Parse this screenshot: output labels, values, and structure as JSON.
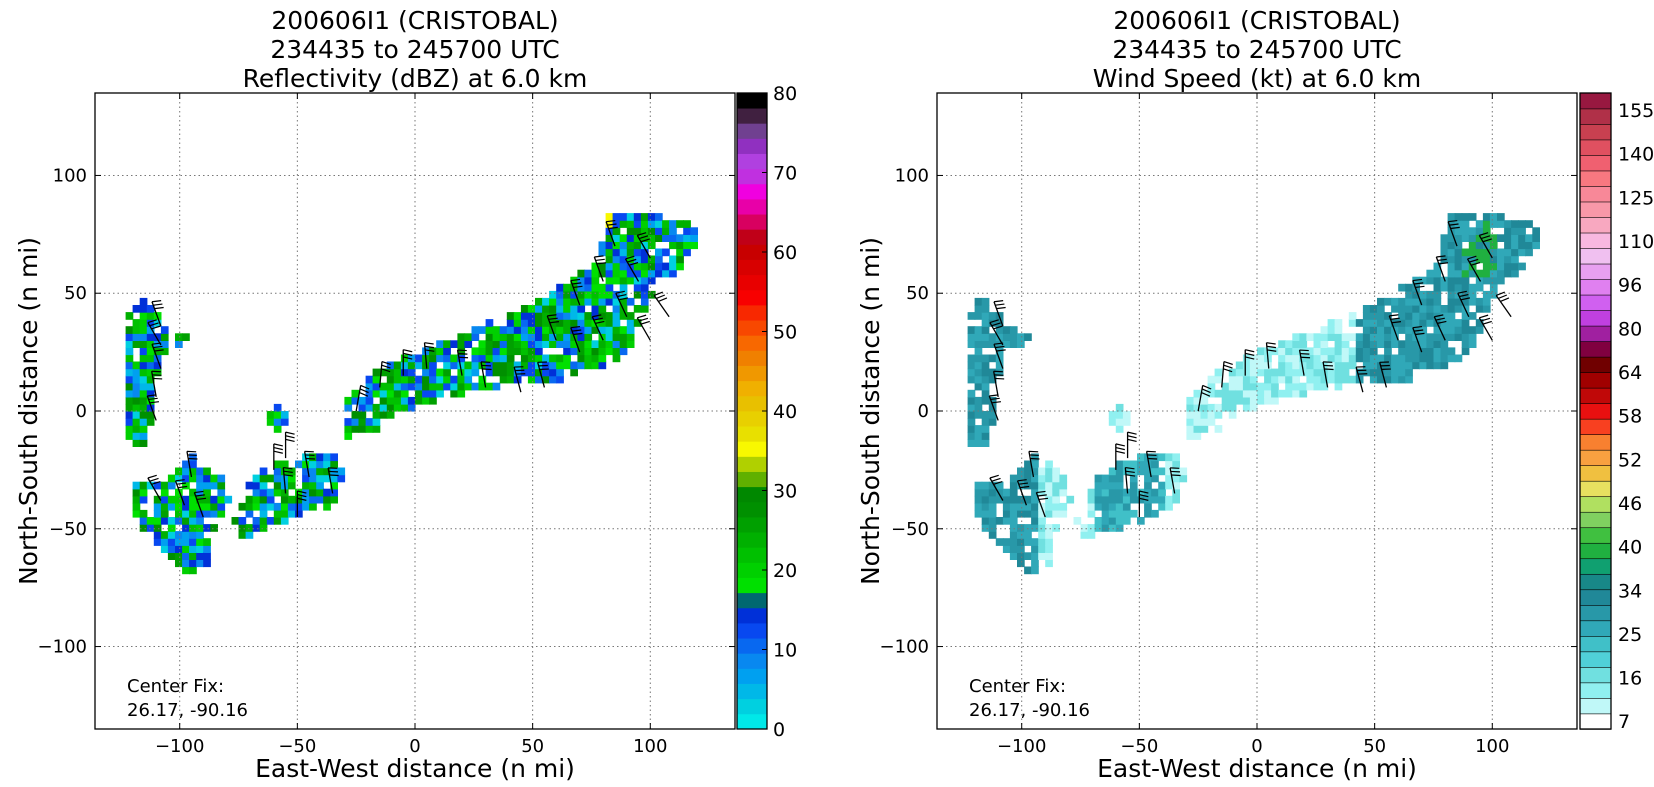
{
  "chart_data": [
    {
      "type": "heatmap",
      "title_lines": [
        "200606I1 (CRISTOBAL)",
        "234435 to 245700 UTC",
        "Reflectivity (dBZ) at 6.0 km"
      ],
      "xlabel": "East-West distance (n mi)",
      "ylabel": "North-South distance (n mi)",
      "xlim": [
        -136,
        136
      ],
      "ylim": [
        -135,
        135
      ],
      "xticks": [
        -100,
        -50,
        0,
        50,
        100
      ],
      "yticks": [
        -100,
        -50,
        0,
        50,
        100
      ],
      "xtick_labels": [
        "−100",
        "−50",
        "0",
        "50",
        "100"
      ],
      "ytick_labels": [
        "−100",
        "−50",
        "0",
        "50",
        "100"
      ],
      "grid": true,
      "annotation": [
        "Center Fix:",
        "26.17, -90.16"
      ],
      "colorbar": {
        "min": 0,
        "max": 80,
        "ticks": [
          0,
          10,
          20,
          30,
          40,
          50,
          60,
          70,
          80
        ],
        "colors": [
          "#00e8e8",
          "#00d0e0",
          "#00b8e8",
          "#00a0f0",
          "#0888f0",
          "#0868f0",
          "#0848f0",
          "#0030d8",
          "#006870",
          "#00e000",
          "#00d000",
          "#00c000",
          "#00b000",
          "#00a000",
          "#009000",
          "#008800",
          "#60b000",
          "#b0d000",
          "#f8f800",
          "#e8e000",
          "#e8d000",
          "#e8c000",
          "#f0b000",
          "#f09800",
          "#f08000",
          "#f86800",
          "#f84800",
          "#f82800",
          "#f80000",
          "#e80000",
          "#d80000",
          "#c80000",
          "#c00018",
          "#d80060",
          "#e800a8",
          "#f000e0",
          "#c030e0",
          "#b040e0",
          "#9030c0",
          "#704090",
          "#402040",
          "#000000"
        ]
      },
      "wind_barbs": true
    },
    {
      "type": "heatmap",
      "title_lines": [
        "200606I1 (CRISTOBAL)",
        "234435 to 245700 UTC",
        "Wind Speed (kt) at 6.0 km"
      ],
      "xlabel": "East-West distance (n mi)",
      "ylabel": "North-South distance (n mi)",
      "xlim": [
        -136,
        136
      ],
      "ylim": [
        -135,
        135
      ],
      "xticks": [
        -100,
        -50,
        0,
        50,
        100
      ],
      "yticks": [
        -100,
        -50,
        0,
        50,
        100
      ],
      "xtick_labels": [
        "−100",
        "−50",
        "0",
        "50",
        "100"
      ],
      "ytick_labels": [
        "−100",
        "−50",
        "0",
        "50",
        "100"
      ],
      "grid": true,
      "annotation": [
        "Center Fix:",
        "26.17, -90.16"
      ],
      "colorbar": {
        "tick_labels": [
          "7",
          "16",
          "25",
          "34",
          "40",
          "46",
          "52",
          "58",
          "64",
          "80",
          "96",
          "110",
          "125",
          "140",
          "155"
        ],
        "colors": [
          "#ffffff",
          "#c0f8f8",
          "#90f0f0",
          "#70e0e0",
          "#50d0d8",
          "#40c0c8",
          "#30a8b8",
          "#2898a8",
          "#208898",
          "#188888",
          "#10a070",
          "#20b040",
          "#40c040",
          "#80d060",
          "#b0e060",
          "#e8e060",
          "#f0c040",
          "#f8a040",
          "#f88030",
          "#f84020",
          "#e81010",
          "#c00808",
          "#a00000",
          "#700000",
          "#800040",
          "#a020a0",
          "#c040e0",
          "#d060f0",
          "#e080f0",
          "#e8a0f0",
          "#f0c0f0",
          "#f8b8e0",
          "#f8a8c0",
          "#f898a8",
          "#f88898",
          "#f87880",
          "#f06070",
          "#e05060",
          "#c84050",
          "#b03048",
          "#981840"
        ]
      },
      "wind_barbs": true
    }
  ]
}
